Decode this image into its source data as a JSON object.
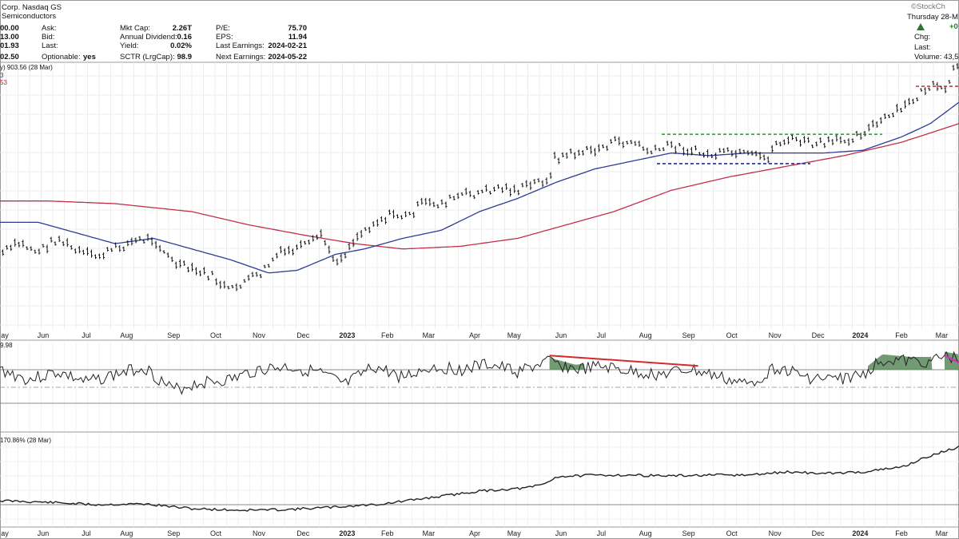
{
  "header": {
    "left_name": "Corp. Nasdaq GS",
    "left_industry": "Semiconductors",
    "watermark": "©StockCh",
    "date_label": "Thursday 28-M",
    "change_glyph": "+0",
    "quote_labels": [
      "Ask:",
      "Bid:",
      "Last:",
      "Optionable:"
    ],
    "quote_values": [
      "00.00",
      "13.00",
      "01.93",
      "02.50"
    ],
    "optionable_value": "yes",
    "stats1_labels": [
      "Mkt Cap:",
      "Annual Dividend:",
      "Yield:",
      "SCTR (LrgCap):"
    ],
    "stats1_values": [
      "2.26T",
      "0.16",
      "0.02%",
      "98.9"
    ],
    "stats2_labels": [
      "P/E:",
      "EPS:",
      "Last Earnings:",
      "Next Earnings:"
    ],
    "stats2_values": [
      "75.70",
      "11.94",
      "2024-02-21",
      "2024-05-22"
    ],
    "right_labels": [
      "Chg:",
      "Last:",
      "Volume: 43,5"
    ],
    "ma_label": "y) 903.56 (28 Mar)",
    "ma_sub1": "3",
    "ma_sub2": "53"
  },
  "indicator_label": "9.98",
  "perf_label": "170.86% (28 Mar)",
  "chart_data": {
    "type": "line",
    "x_tick_labels": [
      "ay",
      "Jun",
      "Jul",
      "Aug",
      "Sep",
      "Oct",
      "Nov",
      "Dec",
      "2023",
      "Feb",
      "Mar",
      "Apr",
      "May",
      "Jun",
      "Jul",
      "Aug",
      "Sep",
      "Oct",
      "Nov",
      "Dec",
      "2024",
      "Feb",
      "Mar"
    ],
    "x_tick_positions": [
      0.005,
      0.045,
      0.09,
      0.132,
      0.181,
      0.225,
      0.27,
      0.316,
      0.362,
      0.404,
      0.447,
      0.495,
      0.536,
      0.585,
      0.627,
      0.673,
      0.718,
      0.763,
      0.808,
      0.853,
      0.897,
      0.94,
      0.982
    ],
    "price_series": [
      [
        0.0,
        0.72
      ],
      [
        0.02,
        0.68
      ],
      [
        0.04,
        0.71
      ],
      [
        0.06,
        0.66
      ],
      [
        0.08,
        0.71
      ],
      [
        0.1,
        0.73
      ],
      [
        0.12,
        0.7
      ],
      [
        0.14,
        0.67
      ],
      [
        0.16,
        0.66
      ],
      [
        0.18,
        0.75
      ],
      [
        0.2,
        0.78
      ],
      [
        0.22,
        0.8
      ],
      [
        0.24,
        0.86
      ],
      [
        0.255,
        0.82
      ],
      [
        0.27,
        0.8
      ],
      [
        0.29,
        0.72
      ],
      [
        0.31,
        0.7
      ],
      [
        0.325,
        0.68
      ],
      [
        0.335,
        0.64
      ],
      [
        0.345,
        0.73
      ],
      [
        0.355,
        0.74
      ],
      [
        0.37,
        0.66
      ],
      [
        0.39,
        0.6
      ],
      [
        0.41,
        0.57
      ],
      [
        0.425,
        0.58
      ],
      [
        0.44,
        0.53
      ],
      [
        0.46,
        0.53
      ],
      [
        0.48,
        0.5
      ],
      [
        0.5,
        0.49
      ],
      [
        0.52,
        0.47
      ],
      [
        0.54,
        0.48
      ],
      [
        0.56,
        0.45
      ],
      [
        0.575,
        0.43
      ],
      [
        0.578,
        0.36
      ],
      [
        0.6,
        0.34
      ],
      [
        0.62,
        0.33
      ],
      [
        0.64,
        0.3
      ],
      [
        0.66,
        0.3
      ],
      [
        0.68,
        0.34
      ],
      [
        0.7,
        0.31
      ],
      [
        0.72,
        0.33
      ],
      [
        0.74,
        0.35
      ],
      [
        0.76,
        0.34
      ],
      [
        0.78,
        0.35
      ],
      [
        0.8,
        0.36
      ],
      [
        0.81,
        0.3
      ],
      [
        0.83,
        0.29
      ],
      [
        0.85,
        0.31
      ],
      [
        0.87,
        0.3
      ],
      [
        0.89,
        0.28
      ],
      [
        0.91,
        0.24
      ],
      [
        0.93,
        0.2
      ],
      [
        0.95,
        0.15
      ],
      [
        0.965,
        0.1
      ],
      [
        0.975,
        0.09
      ],
      [
        0.985,
        0.12
      ],
      [
        0.995,
        0.02
      ],
      [
        1.0,
        0.03
      ]
    ],
    "ma50_series": [
      [
        0.0,
        0.6
      ],
      [
        0.04,
        0.6
      ],
      [
        0.08,
        0.64
      ],
      [
        0.12,
        0.68
      ],
      [
        0.16,
        0.66
      ],
      [
        0.2,
        0.7
      ],
      [
        0.24,
        0.74
      ],
      [
        0.28,
        0.79
      ],
      [
        0.31,
        0.78
      ],
      [
        0.35,
        0.72
      ],
      [
        0.38,
        0.7
      ],
      [
        0.42,
        0.66
      ],
      [
        0.46,
        0.63
      ],
      [
        0.5,
        0.56
      ],
      [
        0.54,
        0.51
      ],
      [
        0.58,
        0.45
      ],
      [
        0.62,
        0.4
      ],
      [
        0.66,
        0.37
      ],
      [
        0.7,
        0.34
      ],
      [
        0.74,
        0.35
      ],
      [
        0.78,
        0.34
      ],
      [
        0.82,
        0.34
      ],
      [
        0.86,
        0.34
      ],
      [
        0.9,
        0.33
      ],
      [
        0.94,
        0.28
      ],
      [
        0.97,
        0.23
      ],
      [
        1.0,
        0.15
      ]
    ],
    "ma200_series": [
      [
        0.0,
        0.52
      ],
      [
        0.05,
        0.52
      ],
      [
        0.12,
        0.53
      ],
      [
        0.2,
        0.56
      ],
      [
        0.26,
        0.61
      ],
      [
        0.32,
        0.65
      ],
      [
        0.37,
        0.68
      ],
      [
        0.42,
        0.7
      ],
      [
        0.48,
        0.69
      ],
      [
        0.54,
        0.66
      ],
      [
        0.58,
        0.62
      ],
      [
        0.64,
        0.56
      ],
      [
        0.7,
        0.48
      ],
      [
        0.76,
        0.43
      ],
      [
        0.82,
        0.39
      ],
      [
        0.88,
        0.35
      ],
      [
        0.94,
        0.3
      ],
      [
        1.0,
        0.23
      ]
    ],
    "resistance_line": {
      "x1": 0.69,
      "x2": 0.92,
      "y": 0.27
    },
    "support_line": {
      "x1": 0.685,
      "x2": 0.845,
      "y": 0.38
    },
    "stop_line": {
      "x1": 0.955,
      "x2": 1.0,
      "y": 0.09
    },
    "indicator_series": [
      [
        0.0,
        0.35
      ],
      [
        0.03,
        0.55
      ],
      [
        0.06,
        0.4
      ],
      [
        0.09,
        0.6
      ],
      [
        0.12,
        0.45
      ],
      [
        0.15,
        0.3
      ],
      [
        0.18,
        0.75
      ],
      [
        0.21,
        0.6
      ],
      [
        0.24,
        0.55
      ],
      [
        0.27,
        0.35
      ],
      [
        0.3,
        0.3
      ],
      [
        0.33,
        0.4
      ],
      [
        0.36,
        0.65
      ],
      [
        0.39,
        0.3
      ],
      [
        0.42,
        0.5
      ],
      [
        0.45,
        0.3
      ],
      [
        0.48,
        0.35
      ],
      [
        0.51,
        0.25
      ],
      [
        0.54,
        0.4
      ],
      [
        0.57,
        0.2
      ],
      [
        0.6,
        0.35
      ],
      [
        0.63,
        0.3
      ],
      [
        0.66,
        0.4
      ],
      [
        0.69,
        0.45
      ],
      [
        0.72,
        0.35
      ],
      [
        0.75,
        0.5
      ],
      [
        0.78,
        0.65
      ],
      [
        0.81,
        0.3
      ],
      [
        0.84,
        0.5
      ],
      [
        0.87,
        0.55
      ],
      [
        0.9,
        0.45
      ],
      [
        0.92,
        0.15
      ],
      [
        0.95,
        0.2
      ],
      [
        0.97,
        0.2
      ],
      [
        0.985,
        0.1
      ],
      [
        1.0,
        0.15
      ]
    ],
    "indicator_trend_line": {
      "x1": 0.573,
      "y1": 0.08,
      "x2": 0.728,
      "y2": 0.28
    },
    "perf_series": [
      [
        0.0,
        0.72
      ],
      [
        0.05,
        0.74
      ],
      [
        0.1,
        0.77
      ],
      [
        0.15,
        0.76
      ],
      [
        0.2,
        0.82
      ],
      [
        0.25,
        0.84
      ],
      [
        0.3,
        0.83
      ],
      [
        0.35,
        0.8
      ],
      [
        0.4,
        0.76
      ],
      [
        0.45,
        0.68
      ],
      [
        0.5,
        0.6
      ],
      [
        0.55,
        0.56
      ],
      [
        0.57,
        0.5
      ],
      [
        0.58,
        0.42
      ],
      [
        0.62,
        0.4
      ],
      [
        0.66,
        0.4
      ],
      [
        0.7,
        0.41
      ],
      [
        0.74,
        0.4
      ],
      [
        0.78,
        0.4
      ],
      [
        0.82,
        0.36
      ],
      [
        0.86,
        0.38
      ],
      [
        0.9,
        0.36
      ],
      [
        0.94,
        0.3
      ],
      [
        0.965,
        0.18
      ],
      [
        0.985,
        0.1
      ],
      [
        1.0,
        0.05
      ]
    ]
  }
}
